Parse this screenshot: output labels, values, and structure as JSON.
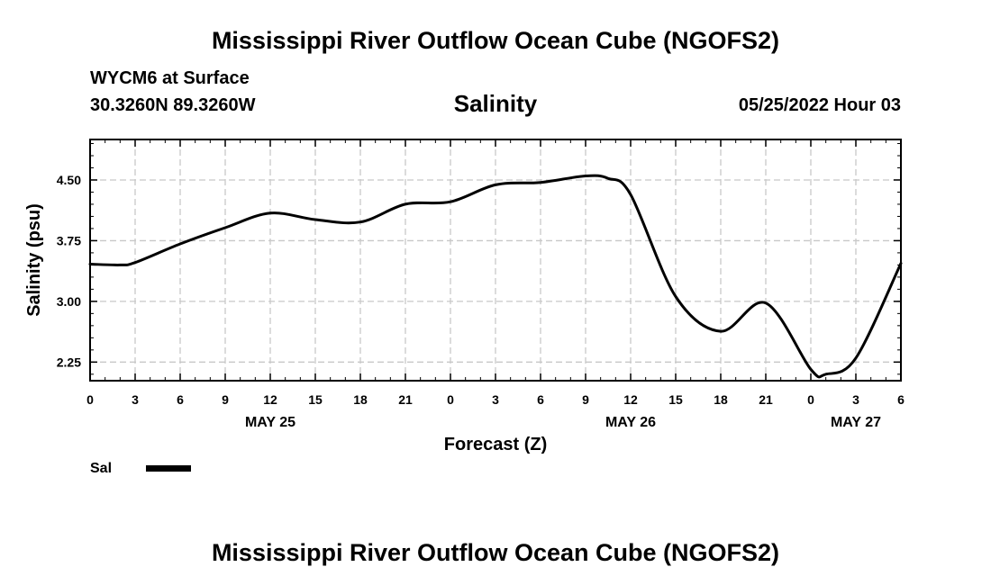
{
  "header": {
    "title": "Mississippi River Outflow Ocean Cube (NGOFS2)",
    "station": "WYCM6 at Surface",
    "coords": "30.3260N  89.3260W",
    "variable": "Salinity",
    "datetime": "05/25/2022 Hour 03"
  },
  "footer": {
    "title": "Mississippi River Outflow Ocean Cube (NGOFS2)"
  },
  "colors": {
    "line": "#000000",
    "grid": "#c8c8c8"
  },
  "chart_data": {
    "type": "line",
    "xlabel": "Forecast (Z)",
    "ylabel": "Salinity (psu)",
    "grid": true,
    "legend_position": "bottom-left",
    "xlim": [
      "2022-05-25 00:00",
      "2022-05-27 06:00"
    ],
    "ylim": [
      2.02,
      5.0
    ],
    "yticks": [
      "2.25",
      "3.00",
      "3.75",
      "4.50"
    ],
    "yticks_values": [
      2.25,
      3.0,
      3.75,
      4.5
    ],
    "xtick_labels": [
      "0",
      "3",
      "6",
      "9",
      "12",
      "15",
      "18",
      "21",
      "0",
      "3",
      "6",
      "9",
      "12",
      "15",
      "18",
      "21",
      "0",
      "3",
      "6"
    ],
    "xtick_times": [
      "2022-05-25 00:00",
      "2022-05-25 03:00",
      "2022-05-25 06:00",
      "2022-05-25 09:00",
      "2022-05-25 12:00",
      "2022-05-25 15:00",
      "2022-05-25 18:00",
      "2022-05-25 21:00",
      "2022-05-26 00:00",
      "2022-05-26 03:00",
      "2022-05-26 06:00",
      "2022-05-26 09:00",
      "2022-05-26 12:00",
      "2022-05-26 15:00",
      "2022-05-26 18:00",
      "2022-05-26 21:00",
      "2022-05-27 00:00",
      "2022-05-27 03:00",
      "2022-05-27 06:00"
    ],
    "date_labels": [
      {
        "text": "MAY 25",
        "time": "2022-05-25 12:00"
      },
      {
        "text": "MAY 26",
        "time": "2022-05-26 12:00"
      },
      {
        "text": "MAY 27",
        "time": "2022-05-27 03:00"
      }
    ],
    "series": [
      {
        "name": "Sal",
        "x": [
          "2022-05-25 00:00",
          "2022-05-25 02:00",
          "2022-05-25 03:00",
          "2022-05-25 06:00",
          "2022-05-25 09:00",
          "2022-05-25 12:00",
          "2022-05-25 15:00",
          "2022-05-25 18:00",
          "2022-05-25 21:00",
          "2022-05-26 00:00",
          "2022-05-26 03:00",
          "2022-05-26 06:00",
          "2022-05-26 09:00",
          "2022-05-26 10:30",
          "2022-05-26 12:00",
          "2022-05-26 15:00",
          "2022-05-26 18:00",
          "2022-05-26 21:00",
          "2022-05-27 00:00",
          "2022-05-27 01:00",
          "2022-05-27 03:00",
          "2022-05-27 06:00"
        ],
        "values": [
          3.46,
          3.45,
          3.48,
          3.71,
          3.91,
          4.09,
          4.01,
          3.98,
          4.2,
          4.23,
          4.44,
          4.47,
          4.55,
          4.52,
          4.32,
          3.06,
          2.63,
          2.98,
          2.16,
          2.1,
          2.3,
          3.47
        ]
      }
    ]
  }
}
